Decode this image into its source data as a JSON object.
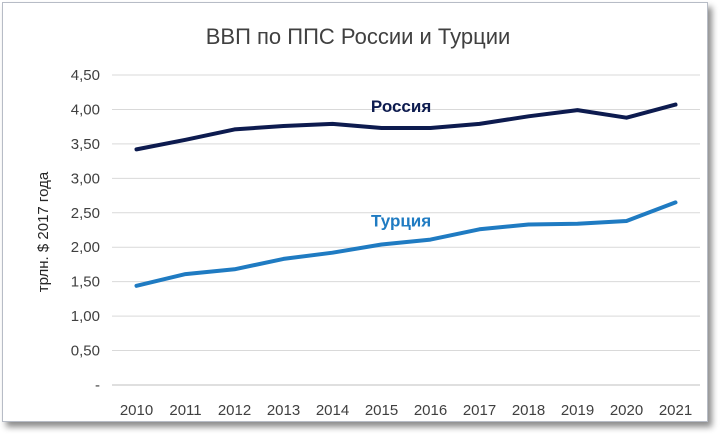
{
  "chart_data": {
    "type": "line",
    "title": "ВВП по ППС России и Турции",
    "xlabel": "",
    "ylabel": "трлн. $ 2017 года",
    "x": [
      "2010",
      "2011",
      "2012",
      "2013",
      "2014",
      "2015",
      "2016",
      "2017",
      "2018",
      "2019",
      "2020",
      "2021"
    ],
    "ylim": [
      0,
      4.5
    ],
    "yticks": [
      "-",
      "0,50",
      "1,00",
      "1,50",
      "2,00",
      "2,50",
      "3,00",
      "3,50",
      "4,00",
      "4,50"
    ],
    "grid": true,
    "legend": "inline labels",
    "series": [
      {
        "name": "Россия",
        "color": "#0d1b4f",
        "values": [
          3.42,
          3.56,
          3.71,
          3.76,
          3.79,
          3.73,
          3.73,
          3.79,
          3.9,
          3.99,
          3.88,
          4.07
        ]
      },
      {
        "name": "Турция",
        "color": "#1f7bc2",
        "values": [
          1.44,
          1.61,
          1.68,
          1.83,
          1.92,
          2.04,
          2.11,
          2.26,
          2.33,
          2.34,
          2.38,
          2.65
        ]
      }
    ]
  }
}
